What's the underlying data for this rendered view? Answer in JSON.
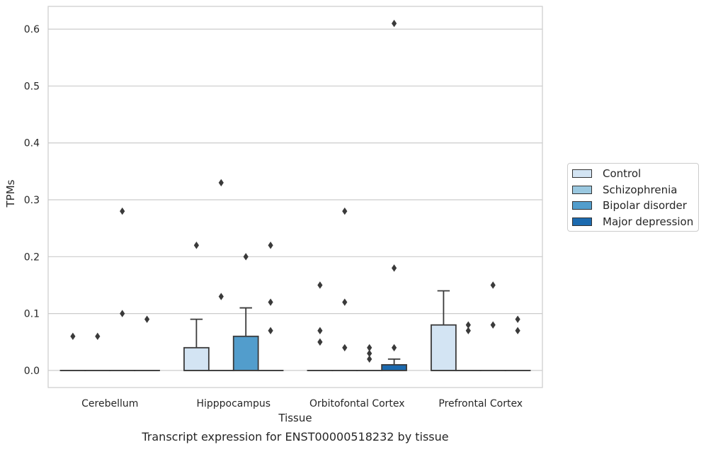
{
  "chart_data": {
    "type": "box",
    "title": "Transcript expression for ENST00000518232 by tissue",
    "xlabel": "Tissue",
    "ylabel": "TPMs",
    "ylim": [
      -0.03,
      0.64
    ],
    "yticks": [
      "0.0",
      "0.1",
      "0.2",
      "0.3",
      "0.4",
      "0.5",
      "0.6"
    ],
    "grid": true,
    "legend_position": "right",
    "categories": [
      "Cerebellum",
      "Hipppocampus",
      "Orbitofontal Cortex",
      "Prefrontal Cortex"
    ],
    "series": [
      {
        "name": "Control",
        "color": "#d3e4f3",
        "boxes": [
          {
            "q1": 0,
            "median": 0,
            "q3": 0,
            "whisker_low": 0,
            "whisker_high": 0,
            "outliers": [
              0.06
            ]
          },
          {
            "q1": 0,
            "median": 0,
            "q3": 0.04,
            "whisker_low": 0,
            "whisker_high": 0.09,
            "outliers": [
              0.22
            ]
          },
          {
            "q1": 0,
            "median": 0,
            "q3": 0,
            "whisker_low": 0,
            "whisker_high": 0,
            "outliers": [
              0.15,
              0.07,
              0.05
            ]
          },
          {
            "q1": 0,
            "median": 0,
            "q3": 0.08,
            "whisker_low": 0,
            "whisker_high": 0.14,
            "outliers": []
          }
        ]
      },
      {
        "name": "Schizophrenia",
        "color": "#9ac8e0",
        "boxes": [
          {
            "q1": 0,
            "median": 0,
            "q3": 0,
            "whisker_low": 0,
            "whisker_high": 0,
            "outliers": [
              0.06
            ]
          },
          {
            "q1": 0,
            "median": 0,
            "q3": 0,
            "whisker_low": 0,
            "whisker_high": 0,
            "outliers": [
              0.33,
              0.13
            ]
          },
          {
            "q1": 0,
            "median": 0,
            "q3": 0,
            "whisker_low": 0,
            "whisker_high": 0,
            "outliers": [
              0.28,
              0.12,
              0.04
            ]
          },
          {
            "q1": 0,
            "median": 0,
            "q3": 0,
            "whisker_low": 0,
            "whisker_high": 0,
            "outliers": [
              0.08,
              0.07
            ]
          }
        ]
      },
      {
        "name": "Bipolar disorder",
        "color": "#529dcc",
        "boxes": [
          {
            "q1": 0,
            "median": 0,
            "q3": 0,
            "whisker_low": 0,
            "whisker_high": 0,
            "outliers": [
              0.28,
              0.1
            ]
          },
          {
            "q1": 0,
            "median": 0,
            "q3": 0.06,
            "whisker_low": 0,
            "whisker_high": 0.11,
            "outliers": [
              0.2
            ]
          },
          {
            "q1": 0,
            "median": 0,
            "q3": 0,
            "whisker_low": 0,
            "whisker_high": 0,
            "outliers": [
              0.04,
              0.03,
              0.02
            ]
          },
          {
            "q1": 0,
            "median": 0,
            "q3": 0,
            "whisker_low": 0,
            "whisker_high": 0,
            "outliers": [
              0.15,
              0.08
            ]
          }
        ]
      },
      {
        "name": "Major depression",
        "color": "#1c6aaf",
        "boxes": [
          {
            "q1": 0,
            "median": 0,
            "q3": 0,
            "whisker_low": 0,
            "whisker_high": 0,
            "outliers": [
              0.09
            ]
          },
          {
            "q1": 0,
            "median": 0,
            "q3": 0,
            "whisker_low": 0,
            "whisker_high": 0,
            "outliers": [
              0.22,
              0.12,
              0.07
            ]
          },
          {
            "q1": 0,
            "median": 0,
            "q3": 0.01,
            "whisker_low": 0,
            "whisker_high": 0.02,
            "outliers": [
              0.61,
              0.18,
              0.04
            ]
          },
          {
            "q1": 0,
            "median": 0,
            "q3": 0,
            "whisker_low": 0,
            "whisker_high": 0,
            "outliers": [
              0.09,
              0.07
            ]
          }
        ]
      }
    ]
  }
}
